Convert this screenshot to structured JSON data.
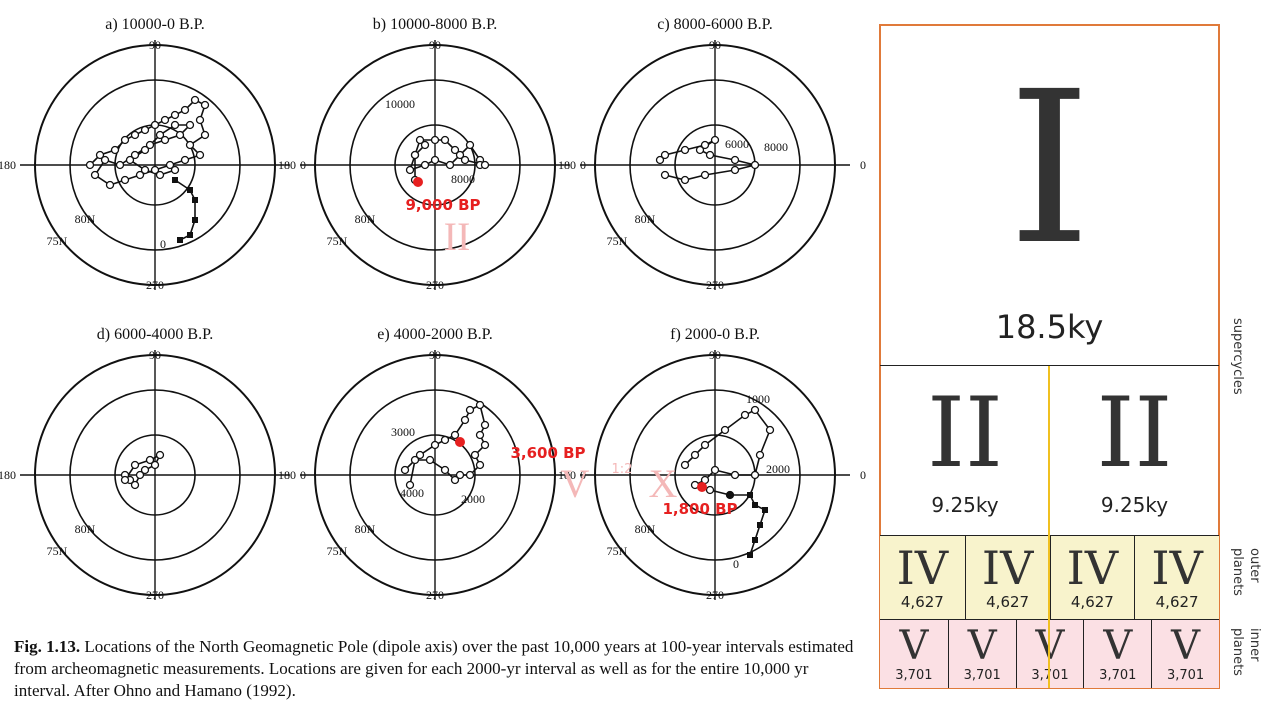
{
  "plots": [
    {
      "title": "a) 10000-0 B.P.",
      "end": "0"
    },
    {
      "title": "b) 10000-8000 B.P.",
      "labels": [
        "10000",
        "8000"
      ],
      "highlight": "9,000 BP",
      "roman": "II"
    },
    {
      "title": "c) 8000-6000 B.P.",
      "labels": [
        "6000",
        "8000"
      ]
    },
    {
      "title": "d) 6000-4000 B.P."
    },
    {
      "title": "e) 4000-2000 B.P.",
      "labels": [
        "3000",
        "4000",
        "2000"
      ],
      "highlight": "3,600 BP",
      "roman": "V",
      "ratio": "1:2",
      "roman2": "X"
    },
    {
      "title": "f) 2000-0 B.P.",
      "labels": [
        "1000",
        "2000",
        "0"
      ],
      "highlight": "1,800 BP"
    }
  ],
  "axis": {
    "top": "90",
    "left": "180",
    "right": "0",
    "bottom": "270",
    "inner": "80N",
    "outer": "75N"
  },
  "caption": {
    "label": "Fig. 1.13.",
    "text": " Locations of the North Geomagnetic Pole (dipole axis) over the past 10,000 years at 100-year intervals estimated from archeomagnetic measurements. Locations are given for each 2000-yr interval as well as for the entire 10,000 yr interval. After Ohno and Hamano (1992)."
  },
  "cycles": {
    "top": {
      "roman": "I",
      "duration": "18.5ky"
    },
    "second": [
      {
        "roman": "II",
        "duration": "9.25ky"
      },
      {
        "roman": "II",
        "duration": "9.25ky"
      }
    ],
    "outer": [
      {
        "roman": "IV",
        "value": "4,627"
      },
      {
        "roman": "IV",
        "value": "4,627"
      },
      {
        "roman": "IV",
        "value": "4,627"
      },
      {
        "roman": "IV",
        "value": "4,627"
      }
    ],
    "inner": [
      {
        "roman": "V",
        "value": "3,701"
      },
      {
        "roman": "V",
        "value": "3,701"
      },
      {
        "roman": "V",
        "value": "3,701"
      },
      {
        "roman": "V",
        "value": "3,701"
      },
      {
        "roman": "V",
        "value": "3,701"
      }
    ],
    "side_labels": {
      "supercycles": "supercycles",
      "outer": [
        "outer",
        "planets"
      ],
      "inner": [
        "inner",
        "planets"
      ]
    }
  },
  "colors": {
    "highlight": "#e62020",
    "outer_fill": "#f8f3cc",
    "inner_fill": "#fbe0e4",
    "frame": "#e07a3a",
    "axis_line": "#f0c020"
  }
}
